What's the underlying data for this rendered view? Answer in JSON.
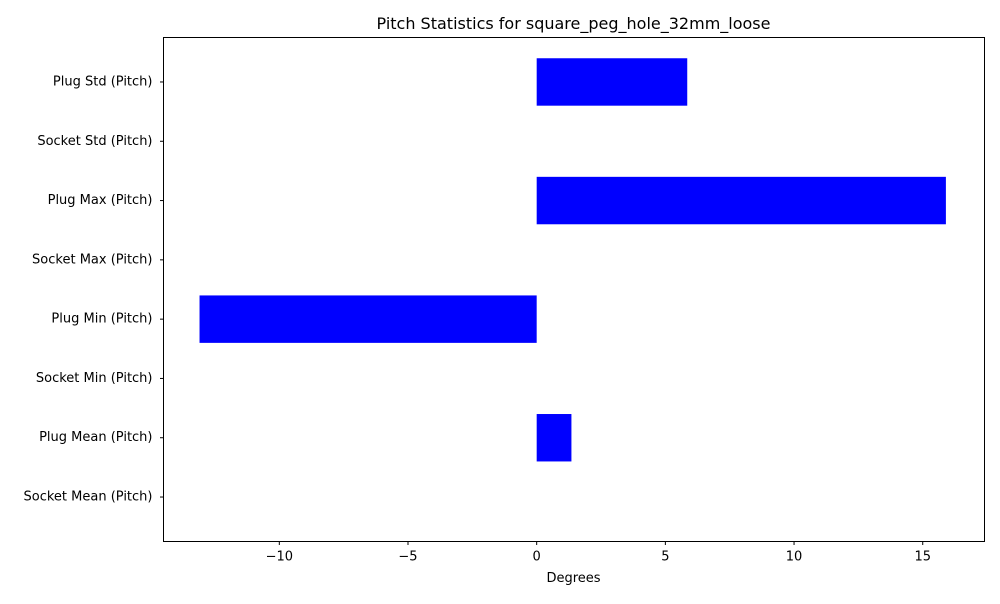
{
  "chart_data": {
    "type": "bar",
    "orientation": "horizontal",
    "title": "Pitch Statistics for square_peg_hole_32mm_loose",
    "xlabel": "Degrees",
    "ylabel": "",
    "xlim": [
      -14.5,
      17.4
    ],
    "xticks": [
      -10,
      -5,
      0,
      5,
      10,
      15
    ],
    "xtick_labels": [
      "−10",
      "−5",
      "0",
      "5",
      "10",
      "15"
    ],
    "categories": [
      "Socket Mean (Pitch)",
      "Plug Mean (Pitch)",
      "Socket Min (Pitch)",
      "Plug Min (Pitch)",
      "Socket Max (Pitch)",
      "Plug Max (Pitch)",
      "Socket Std (Pitch)",
      "Plug Std (Pitch)"
    ],
    "values": [
      0,
      1.35,
      0,
      -13.1,
      0,
      15.9,
      0,
      5.85
    ],
    "bar_color": "#0000ff",
    "grid": false,
    "legend": "none"
  }
}
